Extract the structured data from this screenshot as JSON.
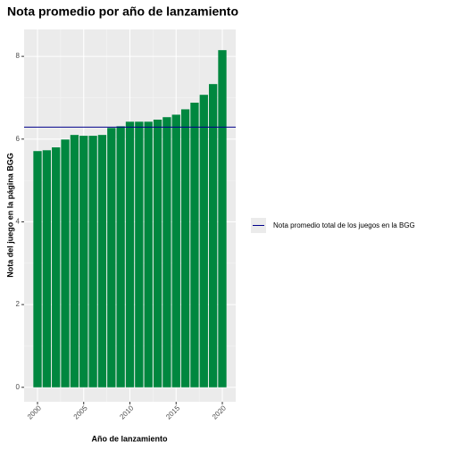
{
  "chart_data": {
    "type": "bar",
    "title": "Nota promedio por año de lanzamiento",
    "x_label": "Año de lanzamiento",
    "y_label": "Nota del juego en la página BGG",
    "x": [
      2000,
      2001,
      2002,
      2003,
      2004,
      2005,
      2006,
      2007,
      2008,
      2009,
      2010,
      2011,
      2012,
      2013,
      2014,
      2015,
      2016,
      2017,
      2018,
      2019,
      2020
    ],
    "values": [
      5.71,
      5.73,
      5.8,
      5.99,
      6.1,
      6.08,
      6.08,
      6.1,
      6.27,
      6.31,
      6.42,
      6.42,
      6.42,
      6.47,
      6.53,
      6.59,
      6.72,
      6.88,
      7.07,
      7.33,
      8.15
    ],
    "color": "#00873f",
    "hline": {
      "name": "Nota promedio total de los juegos en la BGG",
      "value": 6.29,
      "color": "#00008b"
    },
    "xlim": [
      1998.55,
      2021.45
    ],
    "xticks": [
      2000,
      2005,
      2010,
      2015,
      2020
    ],
    "ylim": [
      -0.35,
      8.65
    ],
    "yticks": [
      0,
      2,
      4,
      6,
      8
    ],
    "grid": true,
    "legend_position": "right"
  }
}
